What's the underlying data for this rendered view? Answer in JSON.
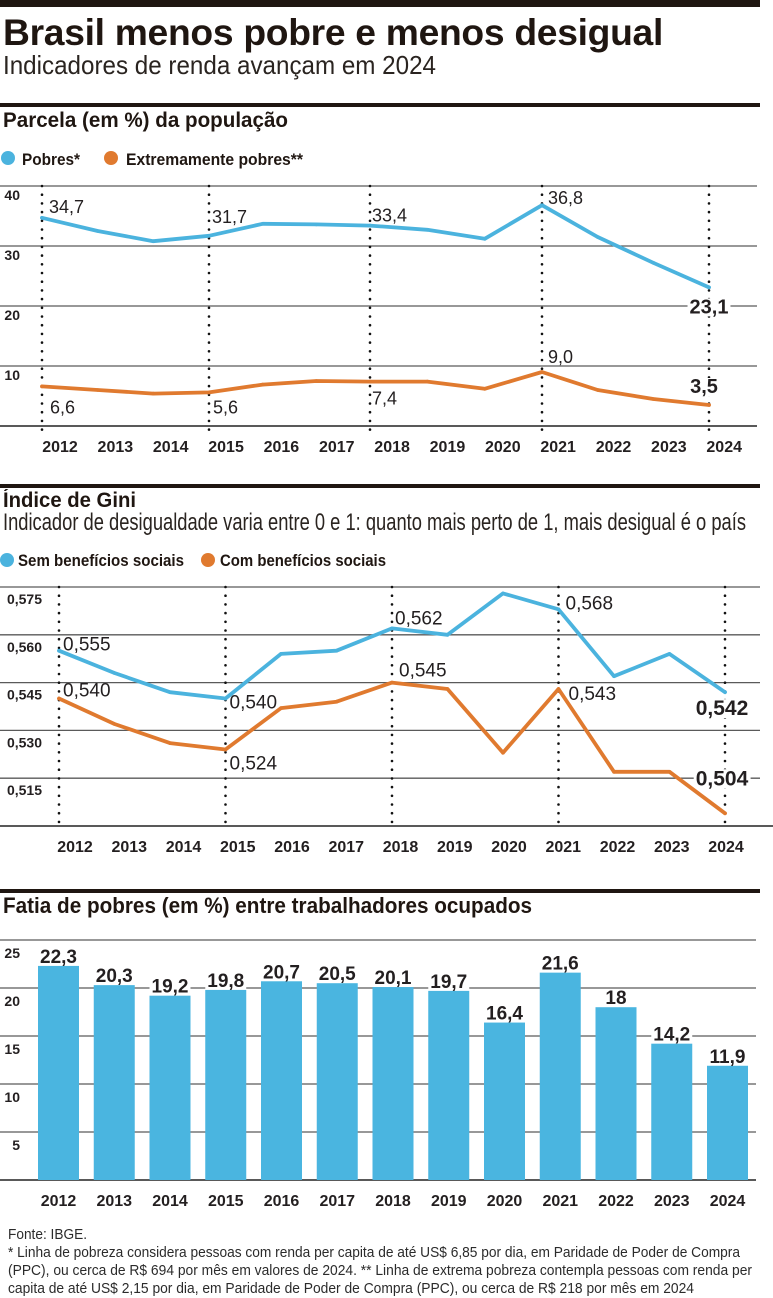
{
  "header": {
    "title": "Brasil menos pobre e menos desigual",
    "subtitle": "Indicadores de renda avançam em 2024"
  },
  "chart_data": [
    {
      "type": "line",
      "title": "Parcela (em %) da população",
      "xlabel": "",
      "ylabel": "",
      "x": [
        "2012",
        "2013",
        "2014",
        "2015",
        "2016",
        "2017",
        "2018",
        "2019",
        "2020",
        "2021",
        "2022",
        "2023",
        "2024"
      ],
      "ylim": [
        0,
        40
      ],
      "yticks": [
        10,
        20,
        30,
        40
      ],
      "ytick_labels": [
        "10",
        "20",
        "30",
        "40"
      ],
      "grid": true,
      "legend": "top-left",
      "reference_lines_x": [
        "2012",
        "2015",
        "2018",
        "2021",
        "2024"
      ],
      "series": [
        {
          "name": "Pobres*",
          "color": "#4bb3de",
          "values": [
            34.7,
            32.5,
            30.8,
            31.7,
            33.7,
            33.6,
            33.4,
            32.7,
            31.2,
            36.8,
            31.5,
            27.2,
            23.1
          ],
          "labels": [
            {
              "x": "2012",
              "text": "34,7"
            },
            {
              "x": "2015",
              "text": "31,7"
            },
            {
              "x": "2018",
              "text": "33,4"
            },
            {
              "x": "2021",
              "text": "36,8"
            },
            {
              "x": "2024",
              "text": "23,1"
            }
          ]
        },
        {
          "name": "Extremamente pobres**",
          "color": "#e07a2f",
          "values": [
            6.6,
            6.0,
            5.4,
            5.6,
            6.9,
            7.5,
            7.4,
            7.4,
            6.2,
            9.0,
            6.0,
            4.5,
            3.5
          ],
          "labels": [
            {
              "x": "2012",
              "text": "6,6"
            },
            {
              "x": "2015",
              "text": "5,6"
            },
            {
              "x": "2018",
              "text": "7,4"
            },
            {
              "x": "2021",
              "text": "9,0"
            },
            {
              "x": "2024",
              "text": "3,5"
            }
          ]
        }
      ]
    },
    {
      "type": "line",
      "title": "Índice de Gini",
      "subtitle": "Indicador de desigualdade varia entre 0 e 1: quanto mais perto de 1, mais desigual é o país",
      "xlabel": "",
      "ylabel": "",
      "x": [
        "2012",
        "2013",
        "2014",
        "2015",
        "2016",
        "2017",
        "2018",
        "2019",
        "2020",
        "2021",
        "2022",
        "2023",
        "2024"
      ],
      "ylim": [
        0.5,
        0.575
      ],
      "yticks": [
        0.515,
        0.53,
        0.545,
        0.56,
        0.575
      ],
      "ytick_labels": [
        "0,515",
        "0,530",
        "0,545",
        "0,560",
        "0,575"
      ],
      "grid": true,
      "legend": "top-left",
      "reference_lines_x": [
        "2012",
        "2015",
        "2018",
        "2021",
        "2024"
      ],
      "series": [
        {
          "name": "Sem benefícios sociais",
          "color": "#4bb3de",
          "values": [
            0.555,
            0.548,
            0.542,
            0.54,
            0.554,
            0.555,
            0.562,
            0.56,
            0.573,
            0.568,
            0.547,
            0.554,
            0.542
          ],
          "labels": [
            {
              "x": "2012",
              "text": "0,555"
            },
            {
              "x": "2015",
              "text": "0,540"
            },
            {
              "x": "2018",
              "text": "0,562"
            },
            {
              "x": "2021",
              "text": "0,568"
            },
            {
              "x": "2024",
              "text": "0,542"
            }
          ]
        },
        {
          "name": "Com benefícios sociais",
          "color": "#e07a2f",
          "values": [
            0.54,
            0.532,
            0.526,
            0.524,
            0.537,
            0.539,
            0.545,
            0.543,
            0.523,
            0.543,
            0.517,
            0.517,
            0.504
          ],
          "labels": [
            {
              "x": "2012",
              "text": "0,540"
            },
            {
              "x": "2015",
              "text": "0,524"
            },
            {
              "x": "2018",
              "text": "0,545"
            },
            {
              "x": "2021",
              "text": "0,543"
            },
            {
              "x": "2024",
              "text": "0,504"
            }
          ]
        }
      ]
    },
    {
      "type": "bar",
      "title": "Fatia de pobres (em %) entre trabalhadores ocupados",
      "xlabel": "",
      "ylabel": "",
      "categories": [
        "2012",
        "2013",
        "2014",
        "2015",
        "2016",
        "2017",
        "2018",
        "2019",
        "2020",
        "2021",
        "2022",
        "2023",
        "2024"
      ],
      "values": [
        22.3,
        20.3,
        19.2,
        19.8,
        20.7,
        20.5,
        20.1,
        19.7,
        16.4,
        21.6,
        18,
        14.2,
        11.9
      ],
      "value_labels": [
        "22,3",
        "20,3",
        "19,2",
        "19,8",
        "20,7",
        "20,5",
        "20,1",
        "19,7",
        "16,4",
        "21,6",
        "18",
        "14,2",
        "11,9"
      ],
      "color": "#4ab5e0",
      "ylim": [
        0,
        25
      ],
      "yticks": [
        5,
        10,
        15,
        20,
        25
      ],
      "ytick_labels": [
        "5",
        "10",
        "15",
        "20",
        "25"
      ],
      "grid": true
    }
  ],
  "footer": {
    "source": "Fonte: IBGE.",
    "notes_lines": [
      "* Linha de pobreza considera pessoas com renda per capita de até US$ 6,85 por dia, em Paridade de Poder de Compra",
      "(PPC), ou cerca de R$ 694 por mês em valores de 2024. ** Linha de extrema pobreza contempla pessoas com renda per",
      "capita de até US$ 2,15 por dia, em Paridade de Poder de Compra (PPC), ou cerca de R$ 218 por mês em 2024"
    ]
  }
}
